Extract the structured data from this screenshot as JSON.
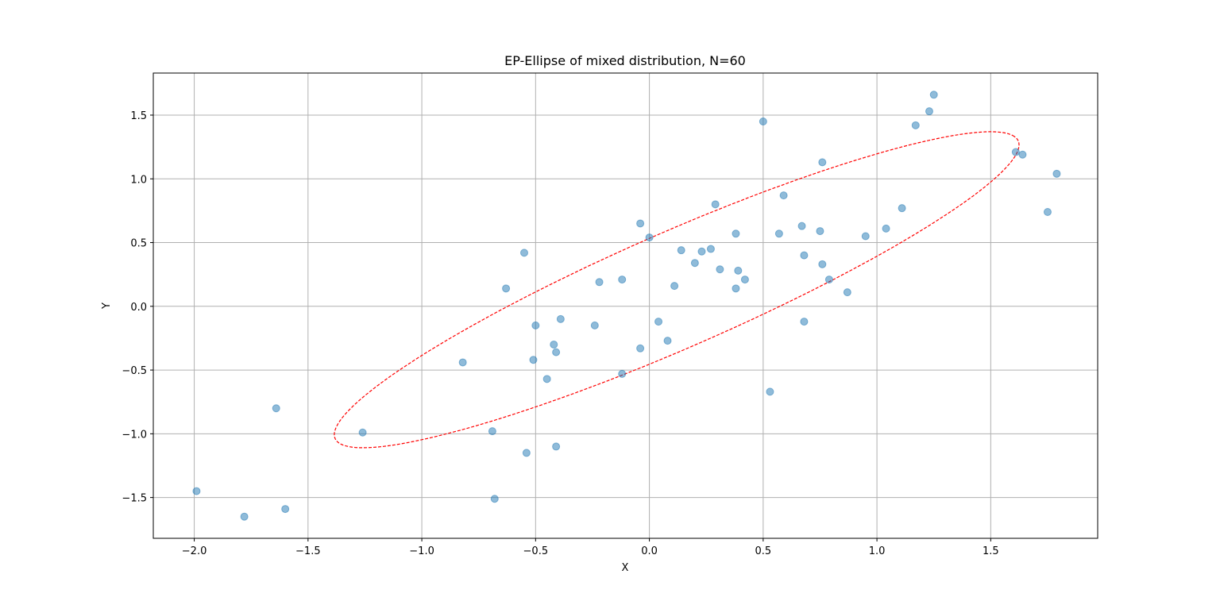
{
  "chart_data": {
    "type": "scatter",
    "title": "EP-Ellipse of mixed distribution, N=60",
    "xlabel": "X",
    "ylabel": "Y",
    "xlim": [
      -2.18,
      1.97
    ],
    "ylim": [
      -1.82,
      1.83
    ],
    "grid": true,
    "x_ticks": [
      -2.0,
      -1.5,
      -1.0,
      -0.5,
      0.0,
      0.5,
      1.0,
      1.5
    ],
    "x_tick_labels": [
      "−2.0",
      "−1.5",
      "−1.0",
      "−0.5",
      "0.0",
      "0.5",
      "1.0",
      "1.5"
    ],
    "y_ticks": [
      -1.5,
      -1.0,
      -0.5,
      0.0,
      0.5,
      1.0,
      1.5
    ],
    "y_tick_labels": [
      "−1.5",
      "−1.0",
      "−0.5",
      "0.0",
      "0.5",
      "1.0",
      "1.5"
    ],
    "point_color": "#1f77b4",
    "ellipse_color": "#ff0000",
    "points": [
      {
        "x": -1.99,
        "y": -1.45
      },
      {
        "x": -1.78,
        "y": -1.65
      },
      {
        "x": -1.64,
        "y": -0.8
      },
      {
        "x": -1.6,
        "y": -1.59
      },
      {
        "x": -1.26,
        "y": -0.99
      },
      {
        "x": -0.82,
        "y": -0.44
      },
      {
        "x": -0.69,
        "y": -0.98
      },
      {
        "x": -0.68,
        "y": -1.51
      },
      {
        "x": -0.63,
        "y": 0.14
      },
      {
        "x": -0.55,
        "y": 0.42
      },
      {
        "x": -0.54,
        "y": -1.15
      },
      {
        "x": -0.51,
        "y": -0.42
      },
      {
        "x": -0.5,
        "y": -0.15
      },
      {
        "x": -0.45,
        "y": -0.57
      },
      {
        "x": -0.42,
        "y": -0.3
      },
      {
        "x": -0.41,
        "y": -0.36
      },
      {
        "x": -0.41,
        "y": -1.1
      },
      {
        "x": -0.39,
        "y": -0.1
      },
      {
        "x": -0.24,
        "y": -0.15
      },
      {
        "x": -0.22,
        "y": 0.19
      },
      {
        "x": -0.12,
        "y": 0.21
      },
      {
        "x": -0.12,
        "y": -0.53
      },
      {
        "x": -0.04,
        "y": 0.65
      },
      {
        "x": -0.04,
        "y": -0.33
      },
      {
        "x": 0.0,
        "y": 0.54
      },
      {
        "x": 0.04,
        "y": -0.12
      },
      {
        "x": 0.08,
        "y": -0.27
      },
      {
        "x": 0.11,
        "y": 0.16
      },
      {
        "x": 0.14,
        "y": 0.44
      },
      {
        "x": 0.2,
        "y": 0.34
      },
      {
        "x": 0.23,
        "y": 0.43
      },
      {
        "x": 0.27,
        "y": 0.45
      },
      {
        "x": 0.29,
        "y": 0.8
      },
      {
        "x": 0.31,
        "y": 0.29
      },
      {
        "x": 0.38,
        "y": 0.14
      },
      {
        "x": 0.38,
        "y": 0.57
      },
      {
        "x": 0.39,
        "y": 0.28
      },
      {
        "x": 0.42,
        "y": 0.21
      },
      {
        "x": 0.5,
        "y": 1.45
      },
      {
        "x": 0.53,
        "y": -0.67
      },
      {
        "x": 0.57,
        "y": 0.57
      },
      {
        "x": 0.59,
        "y": 0.87
      },
      {
        "x": 0.67,
        "y": 0.63
      },
      {
        "x": 0.68,
        "y": 0.4
      },
      {
        "x": 0.68,
        "y": -0.12
      },
      {
        "x": 0.75,
        "y": 0.59
      },
      {
        "x": 0.76,
        "y": 0.33
      },
      {
        "x": 0.76,
        "y": 1.13
      },
      {
        "x": 0.79,
        "y": 0.21
      },
      {
        "x": 0.87,
        "y": 0.11
      },
      {
        "x": 0.95,
        "y": 0.55
      },
      {
        "x": 1.04,
        "y": 0.61
      },
      {
        "x": 1.11,
        "y": 0.77
      },
      {
        "x": 1.17,
        "y": 1.42
      },
      {
        "x": 1.23,
        "y": 1.53
      },
      {
        "x": 1.25,
        "y": 1.66
      },
      {
        "x": 1.61,
        "y": 1.21
      },
      {
        "x": 1.64,
        "y": 1.19
      },
      {
        "x": 1.75,
        "y": 0.74
      },
      {
        "x": 1.79,
        "y": 1.04
      }
    ],
    "ellipse": {
      "cx": 0.12,
      "cy": 0.13,
      "rx": 1.91,
      "ry": 0.39,
      "angle_deg": 39.0
    }
  }
}
